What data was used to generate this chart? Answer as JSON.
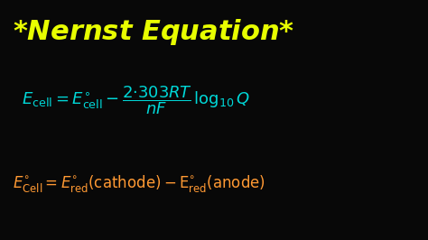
{
  "background_color": "#080808",
  "title_color": "#e8ff00",
  "eq1_color": "#00d8d8",
  "eq2_color": "#ff9933",
  "fig_width": 4.74,
  "fig_height": 2.66,
  "dpi": 100,
  "title_fontsize": 22,
  "eq1_fontsize": 13,
  "eq2_fontsize": 12
}
